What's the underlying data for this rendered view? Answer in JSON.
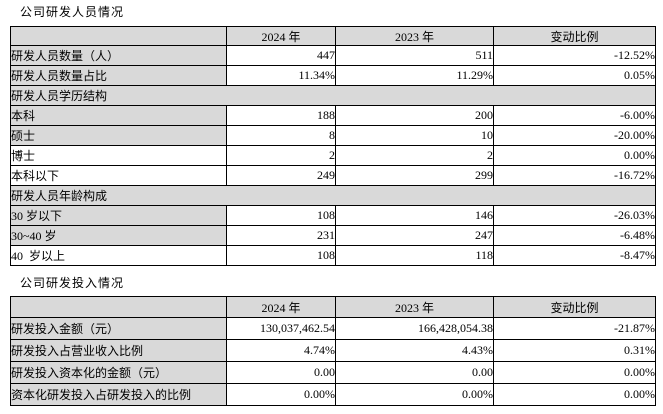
{
  "colors": {
    "shaded_cell_bg": "#d9d9d9",
    "border": "#000000",
    "page_bg": "#ffffff",
    "text": "#000000"
  },
  "section1": {
    "title": "公司研发人员情况",
    "table": {
      "columns": [
        "",
        "2024 年",
        "2023 年",
        "变动比例"
      ],
      "rows": [
        {
          "type": "data",
          "label": "研发人员数量（人）",
          "label_shaded": true,
          "v2024": "447",
          "v2023": "511",
          "change": "-12.52%"
        },
        {
          "type": "data",
          "label": "研发人员数量占比",
          "label_shaded": true,
          "v2024": "11.34%",
          "v2023": "11.29%",
          "change": "0.05%"
        },
        {
          "type": "section",
          "label": "研发人员学历结构"
        },
        {
          "type": "data",
          "label": "本科",
          "label_shaded": true,
          "v2024": "188",
          "v2023": "200",
          "change": "-6.00%"
        },
        {
          "type": "data",
          "label": "硕士",
          "label_shaded": true,
          "v2024": "8",
          "v2023": "10",
          "change": "-20.00%"
        },
        {
          "type": "data",
          "label": "博士",
          "label_shaded": false,
          "v2024": "2",
          "v2023": "2",
          "change": "0.00%"
        },
        {
          "type": "data",
          "label": "本科以下",
          "label_shaded": false,
          "v2024": "249",
          "v2023": "299",
          "change": "-16.72%"
        },
        {
          "type": "section",
          "label": "研发人员年龄构成"
        },
        {
          "type": "data",
          "label": "30 岁以下",
          "label_shaded": true,
          "v2024": "108",
          "v2023": "146",
          "change": "-26.03%"
        },
        {
          "type": "data",
          "label": "30~40 岁",
          "label_shaded": true,
          "v2024": "231",
          "v2023": "247",
          "change": "-6.48%"
        },
        {
          "type": "data",
          "label": "40  岁以上",
          "label_shaded": false,
          "v2024": "108",
          "v2023": "118",
          "change": "-8.47%"
        }
      ]
    }
  },
  "section2": {
    "title": "公司研发投入情况",
    "table": {
      "columns": [
        "",
        "2024 年",
        "2023 年",
        "变动比例"
      ],
      "rows": [
        {
          "type": "data",
          "label": "研发投入金额（元）",
          "label_shaded": true,
          "v2024": "130,037,462.54",
          "v2023": "166,428,054.38",
          "change": "-21.87%"
        },
        {
          "type": "data",
          "label": "研发投入占营业收入比例",
          "label_shaded": true,
          "v2024": "4.74%",
          "v2023": "4.43%",
          "change": "0.31%"
        },
        {
          "type": "data",
          "label": "研发投入资本化的金额（元）",
          "label_shaded": true,
          "v2024": "0.00",
          "v2023": "0.00",
          "change": "0.00%"
        },
        {
          "type": "data",
          "label": "资本化研发投入占研发投入的比例",
          "label_shaded": true,
          "v2024": "0.00%",
          "v2023": "0.00%",
          "change": "0.00%"
        }
      ]
    }
  }
}
